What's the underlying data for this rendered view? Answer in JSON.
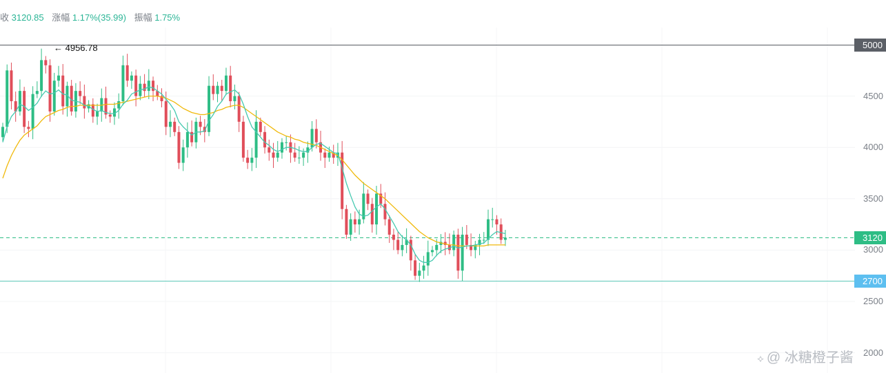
{
  "header": {
    "close_label": "收",
    "close_value": "3120.85",
    "change_label": "涨幅",
    "change_value": "1.17%(35.99)",
    "amplitude_label": "振幅",
    "amplitude_value": "1.75%"
  },
  "max_annotation": "← 4956.78",
  "price_tags": {
    "resistance": "5000",
    "current": "3120",
    "support": "2700"
  },
  "watermark": {
    "icon": "share-icon",
    "text": "@ 冰糖橙子酱"
  },
  "colors": {
    "up": "#2ebd85",
    "down": "#e04e5a",
    "ma_fast": "#45c9b0",
    "ma_slow": "#f0b90b",
    "support": "#5cc8b8",
    "current": "#2ebd85",
    "resistance": "#555a60"
  },
  "chart_data": {
    "type": "candlestick",
    "ylim": [
      2000,
      5150
    ],
    "y_ticks": [
      "4500",
      "4000",
      "3500",
      "3000",
      "2500",
      "2000"
    ],
    "horizontal_lines": [
      {
        "name": "resistance",
        "value": 5000
      },
      {
        "name": "current",
        "value": 3120
      },
      {
        "name": "support",
        "value": 2700
      }
    ],
    "close": [
      4200,
      4750,
      4450,
      4350,
      4550,
      4200,
      4180,
      4520,
      4550,
      4850,
      4800,
      4350,
      4650,
      4700,
      4400,
      4600,
      4350,
      4550,
      4500,
      4380,
      4420,
      4300,
      4350,
      4480,
      4320,
      4300,
      4380,
      4450,
      4800,
      4650,
      4700,
      4500,
      4620,
      4550,
      4650,
      4550,
      4500,
      4450,
      4200,
      4250,
      4150,
      3850,
      4000,
      4150,
      4050,
      4250,
      4200,
      4150,
      4600,
      4520,
      4600,
      4550,
      4700,
      4450,
      4500,
      4250,
      3900,
      3850,
      3900,
      4250,
      4150,
      4000,
      3950,
      3900,
      3950,
      4050,
      4050,
      3950,
      3900,
      3900,
      3950,
      4000,
      4180,
      4050,
      3950,
      3900,
      3950,
      3900,
      3950,
      3400,
      3150,
      3300,
      3250,
      3300,
      3550,
      3450,
      3250,
      3550,
      3450,
      3300,
      3150,
      3100,
      3000,
      3050,
      3100,
      2900,
      2750,
      2800,
      2850,
      2980,
      3000,
      3050,
      3080,
      3050,
      3000,
      3150,
      2800,
      3150,
      3050,
      3000,
      3050,
      3100,
      3100,
      3300,
      3300,
      3250,
      3100,
      3120.85
    ],
    "ma_fast": [
      4050,
      4200,
      4300,
      4350,
      4420,
      4400,
      4360,
      4390,
      4430,
      4500,
      4550,
      4520,
      4530,
      4560,
      4520,
      4510,
      4460,
      4450,
      4440,
      4410,
      4400,
      4370,
      4350,
      4360,
      4340,
      4330,
      4330,
      4360,
      4420,
      4460,
      4520,
      4540,
      4560,
      4570,
      4590,
      4580,
      4550,
      4520,
      4470,
      4420,
      4360,
      4250,
      4200,
      4160,
      4120,
      4150,
      4150,
      4160,
      4260,
      4320,
      4400,
      4450,
      4520,
      4540,
      4560,
      4520,
      4420,
      4300,
      4200,
      4150,
      4100,
      4050,
      4020,
      3980,
      3960,
      3980,
      4000,
      4000,
      3990,
      3970,
      3960,
      3960,
      4000,
      4030,
      4040,
      4010,
      3980,
      3950,
      3940,
      3800,
      3650,
      3530,
      3420,
      3350,
      3330,
      3340,
      3380,
      3420,
      3450,
      3400,
      3330,
      3260,
      3180,
      3130,
      3100,
      3050,
      2960,
      2900,
      2880,
      2880,
      2900,
      2950,
      2990,
      3010,
      3020,
      3040,
      3020,
      3030,
      3040,
      3040,
      3050,
      3060,
      3070,
      3110,
      3150,
      3180,
      3170,
      3160
    ],
    "ma_slow": [
      3700,
      3820,
      3920,
      4000,
      4070,
      4120,
      4150,
      4180,
      4210,
      4260,
      4300,
      4320,
      4340,
      4360,
      4370,
      4390,
      4400,
      4400,
      4410,
      4410,
      4410,
      4410,
      4410,
      4410,
      4420,
      4420,
      4420,
      4430,
      4440,
      4450,
      4460,
      4470,
      4480,
      4490,
      4500,
      4500,
      4500,
      4490,
      4480,
      4460,
      4440,
      4410,
      4380,
      4360,
      4340,
      4330,
      4320,
      4320,
      4330,
      4340,
      4360,
      4370,
      4390,
      4400,
      4410,
      4410,
      4390,
      4360,
      4330,
      4300,
      4270,
      4240,
      4210,
      4180,
      4150,
      4130,
      4110,
      4100,
      4080,
      4070,
      4050,
      4040,
      4030,
      4020,
      4000,
      3980,
      3960,
      3940,
      3920,
      3880,
      3830,
      3780,
      3730,
      3690,
      3650,
      3620,
      3590,
      3560,
      3530,
      3500,
      3460,
      3420,
      3380,
      3340,
      3300,
      3260,
      3220,
      3180,
      3150,
      3120,
      3100,
      3080,
      3070,
      3060,
      3050,
      3050,
      3040,
      3040,
      3040,
      3040,
      3040,
      3040,
      3040,
      3050,
      3050,
      3050,
      3050,
      3050
    ]
  }
}
